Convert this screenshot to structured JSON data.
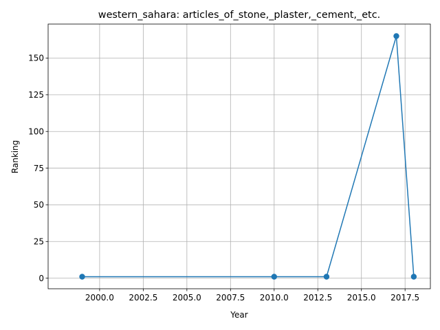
{
  "chart_data": {
    "type": "line",
    "title": "western_sahara: articles_of_stone,_plaster,_cement,_etc.",
    "xlabel": "Year",
    "ylabel": "Ranking",
    "xlim": [
      1997.05,
      2018.95
    ],
    "ylim": [
      -7.2,
      173.2
    ],
    "xticks": [
      2000.0,
      2002.5,
      2005.0,
      2007.5,
      2010.0,
      2012.5,
      2015.0,
      2017.5
    ],
    "xtick_labels": [
      "2000.0",
      "2002.5",
      "2005.0",
      "2007.5",
      "2010.0",
      "2012.5",
      "2015.0",
      "2017.5"
    ],
    "yticks": [
      0,
      25,
      50,
      75,
      100,
      125,
      150
    ],
    "ytick_labels": [
      "0",
      "25",
      "50",
      "75",
      "100",
      "125",
      "150"
    ],
    "grid": true,
    "series": [
      {
        "color": "#1f77b4",
        "marker": "circle",
        "x": [
          1999,
          2010,
          2013,
          2017,
          2018
        ],
        "y": [
          1,
          1,
          1,
          165,
          1
        ]
      }
    ]
  }
}
